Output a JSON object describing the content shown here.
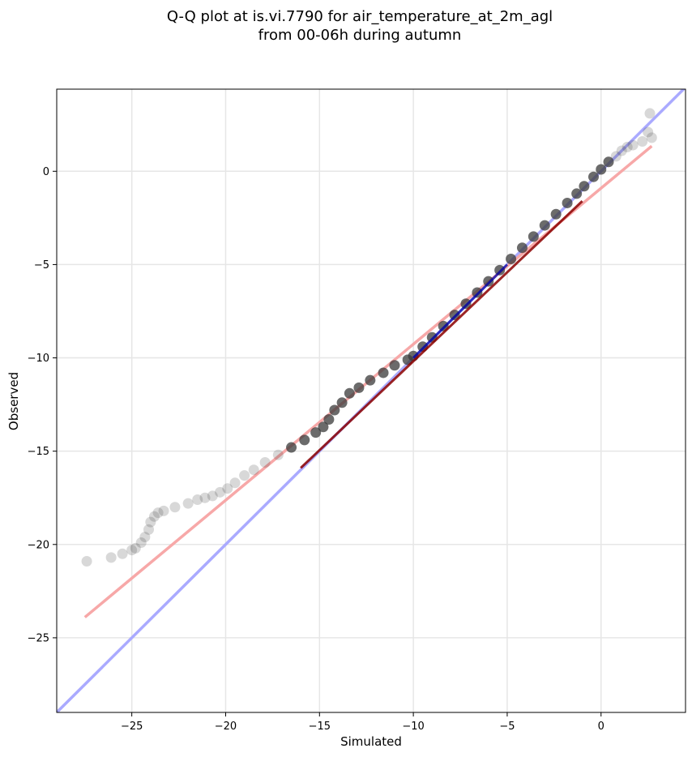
{
  "chart_data": {
    "type": "scatter",
    "title": "Q-Q plot at is.vi.7790 for air_temperature_at_2m_agl",
    "subtitle": "from 00-06h during autumn",
    "xlabel": "Simulated",
    "ylabel": "Observed",
    "xlim": [
      -29,
      4.5
    ],
    "ylim": [
      -29,
      4.4
    ],
    "xticks": [
      -25,
      -20,
      -15,
      -10,
      -5,
      0
    ],
    "yticks": [
      -25,
      -20,
      -15,
      -10,
      -5,
      0
    ],
    "xtick_labels": [
      "−25",
      "−20",
      "−15",
      "−10",
      "−5",
      "0"
    ],
    "ytick_labels": [
      "−25",
      "−20",
      "−15",
      "−10",
      "−5",
      "0"
    ],
    "grid": true,
    "colors": {
      "points": "#3a3a3a",
      "identity_line": "#aaaaff",
      "fit_line": "#f7a8a8",
      "fit_line_dense": "#8b0000",
      "identity_line_dense": "#0000aa"
    },
    "identity_line": {
      "x": [
        -29,
        4.5
      ],
      "y": [
        -29,
        4.5
      ]
    },
    "fit_line": {
      "x": [
        -27.5,
        2.7
      ],
      "y": [
        -23.9,
        1.35
      ]
    },
    "points": {
      "x": [
        -27.4,
        -26.1,
        -25.5,
        -25.0,
        -24.8,
        -24.5,
        -24.3,
        -24.1,
        -24.0,
        -23.8,
        -23.6,
        -23.3,
        -22.7,
        -22.0,
        -21.5,
        -21.1,
        -20.7,
        -20.3,
        -19.9,
        -19.5,
        -19.0,
        -18.5,
        -17.9,
        -17.2,
        -16.5,
        -15.8,
        -15.2,
        -14.8,
        -14.5,
        -14.2,
        -13.8,
        -13.4,
        -12.9,
        -12.3,
        -11.6,
        -11.0,
        -10.3,
        -10.0,
        -9.5,
        -9.0,
        -8.4,
        -7.8,
        -7.2,
        -6.6,
        -6.0,
        -5.4,
        -4.8,
        -4.2,
        -3.6,
        -3.0,
        -2.4,
        -1.8,
        -1.3,
        -0.9,
        -0.4,
        0.0,
        0.4,
        0.8,
        1.1,
        1.4,
        1.7,
        2.2,
        2.5,
        2.6,
        2.7
      ],
      "y": [
        -20.9,
        -20.7,
        -20.5,
        -20.3,
        -20.2,
        -19.9,
        -19.6,
        -19.2,
        -18.8,
        -18.5,
        -18.3,
        -18.2,
        -18.0,
        -17.8,
        -17.6,
        -17.5,
        -17.4,
        -17.2,
        -17.0,
        -16.7,
        -16.3,
        -16.0,
        -15.6,
        -15.2,
        -14.8,
        -14.4,
        -14.0,
        -13.7,
        -13.3,
        -12.8,
        -12.4,
        -11.9,
        -11.6,
        -11.2,
        -10.8,
        -10.4,
        -10.1,
        -9.9,
        -9.4,
        -8.9,
        -8.3,
        -7.7,
        -7.1,
        -6.5,
        -5.9,
        -5.3,
        -4.7,
        -4.1,
        -3.5,
        -2.9,
        -2.3,
        -1.7,
        -1.2,
        -0.8,
        -0.3,
        0.1,
        0.5,
        0.8,
        1.1,
        1.3,
        1.4,
        1.6,
        2.1,
        3.1,
        1.8
      ]
    }
  }
}
